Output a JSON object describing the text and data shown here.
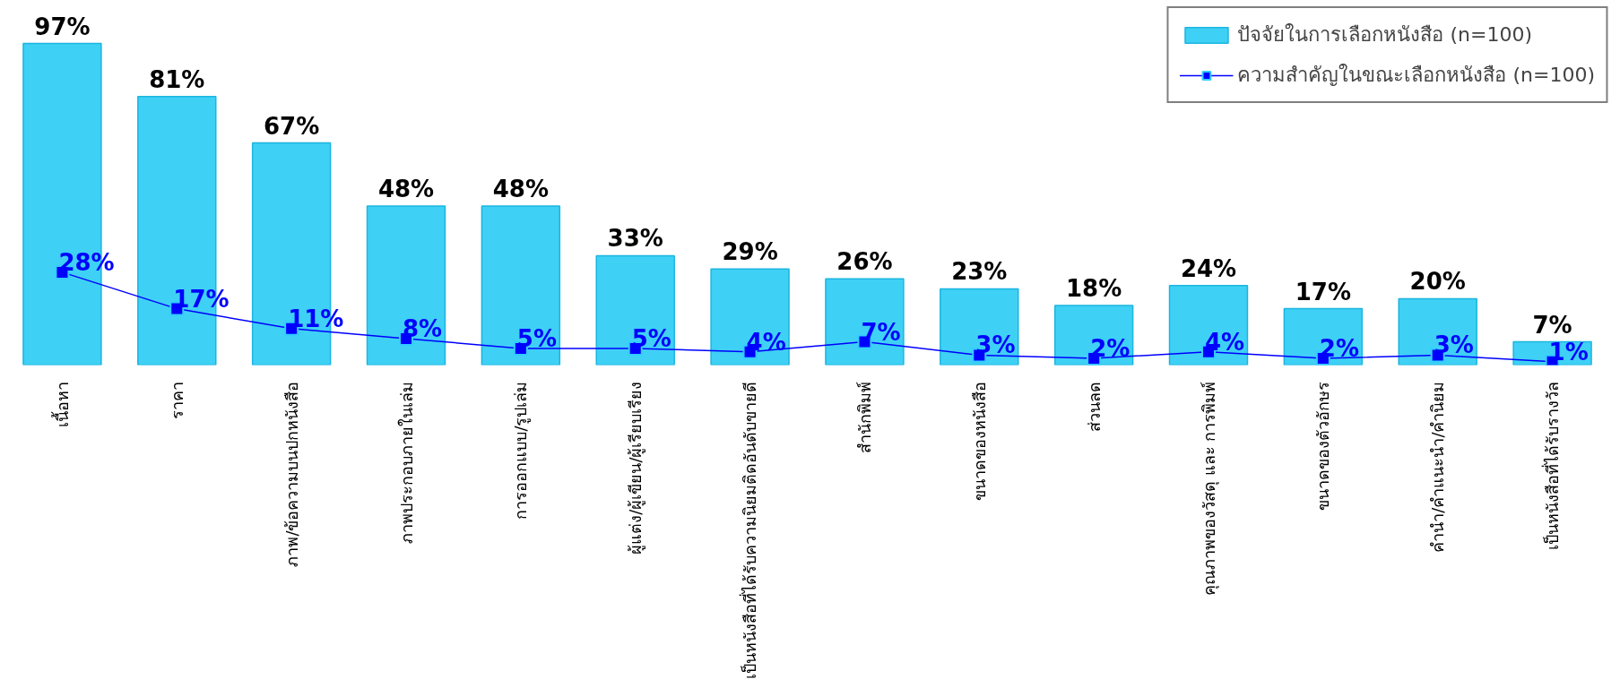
{
  "chart_data": {
    "type": "bar",
    "categories": [
      "เนื้อหา",
      "ราคา",
      "ภาพ/ข้อความบนปกหนังสือ",
      "ภาพประกอบภายในเล่ม",
      "การออกแบบ/รูปเล่ม",
      "ผู้แต่ง/ผู้เขียน/ผู้เรียบเรียง",
      "เป็นหนังสือที่ได้รับความนิยมติดอันดับขายดี",
      "สำนักพิมพ์",
      "ขนาดของหนังสือ",
      "ส่วนลด",
      "คุณภาพของวัสดุ และ การพิมพ์",
      "ขนาดของตัวอักษร",
      "คำนำ/คำแนะนำ/คำนิยม",
      "เป็นหนังสือที่ได้รับรางวัล"
    ],
    "series": [
      {
        "name": "ปัจจัยในการเลือกหนังสือ (n=100)",
        "color": "#3fd0f5",
        "values": [
          97,
          81,
          67,
          48,
          48,
          33,
          29,
          26,
          23,
          18,
          24,
          17,
          20,
          7
        ],
        "value_labels": [
          "97%",
          "81%",
          "67%",
          "48%",
          "48%",
          "33%",
          "29%",
          "26%",
          "23%",
          "18%",
          "24%",
          "17%",
          "20%",
          "7%"
        ]
      },
      {
        "name": "ความสำคัญในขณะเลือกหนังสือ (n=100)",
        "type": "line",
        "color": "#0000ff",
        "marker": "square",
        "line_style": "solid",
        "values": [
          28,
          17,
          11,
          8,
          5,
          5,
          4,
          7,
          3,
          2,
          4,
          2,
          3,
          1
        ],
        "value_labels": [
          "28%",
          "17%",
          "11%",
          "8%",
          "5%",
          "5%",
          "4%",
          "7%",
          "3%",
          "2%",
          "4%",
          "2%",
          "3%",
          "1%"
        ]
      }
    ],
    "legend": "top right",
    "grid": false
  }
}
